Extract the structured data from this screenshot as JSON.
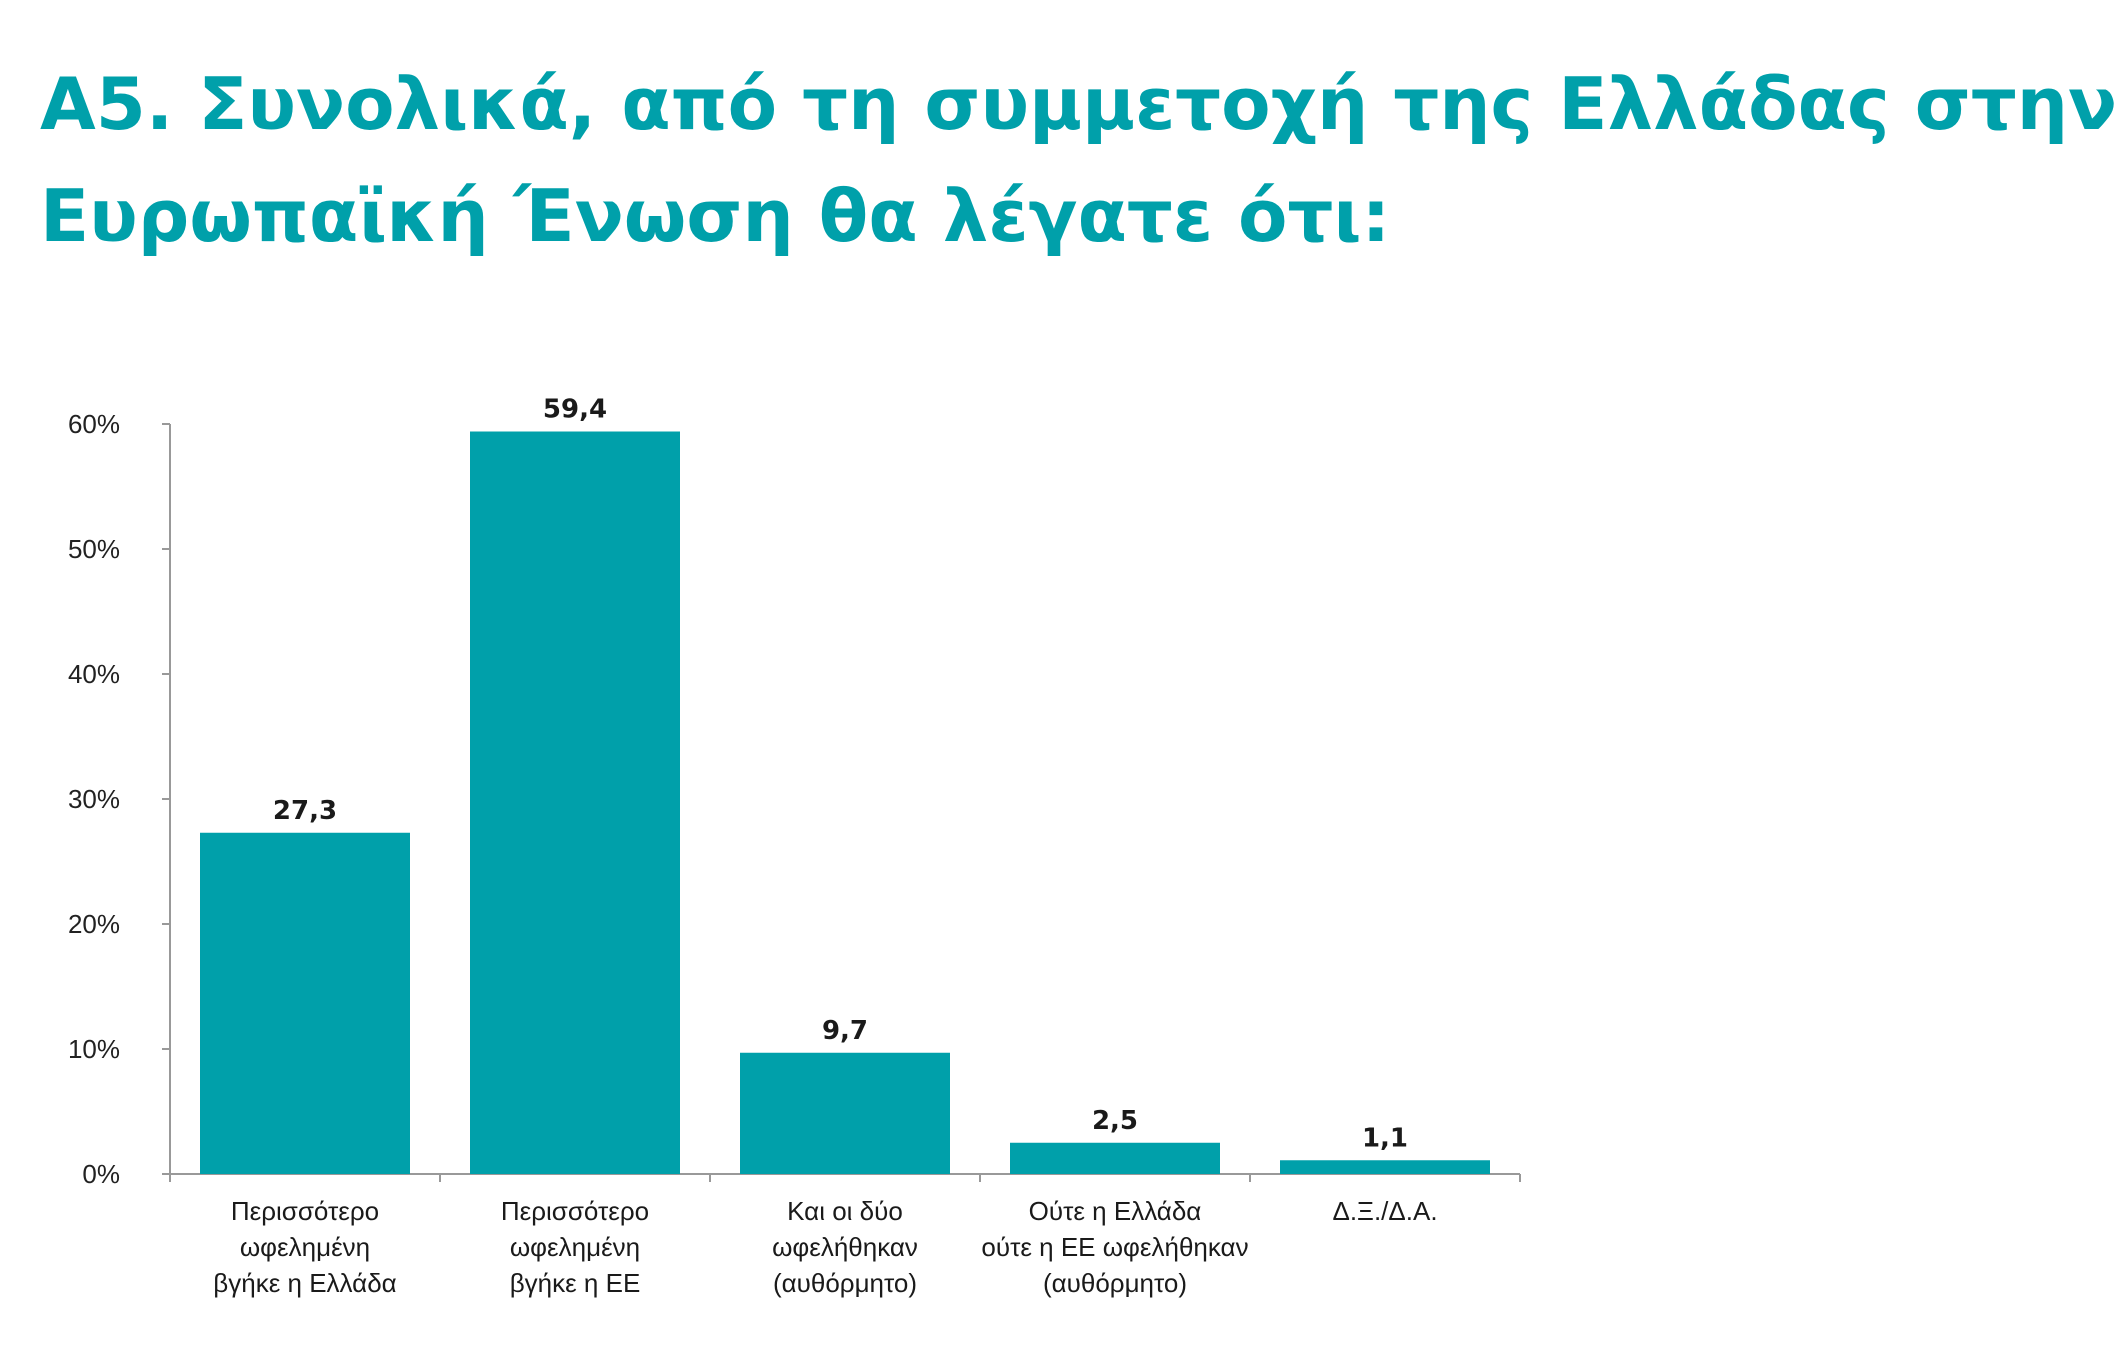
{
  "title_lines": [
    "Α5. Συνολικά, από τη συμμετοχή της Ελλάδας στην",
    "Ευρωπαϊκή Ένωση θα λέγατε ότι:"
  ],
  "colors": {
    "accent": "#00a0aa",
    "bar": "#00a0aa",
    "axis": "#999999",
    "text": "#1a1a1a"
  },
  "chart_data": {
    "type": "bar",
    "categories": [
      [
        "Περισσότερο",
        "ωφελημένη",
        "βγήκε η Ελλάδα"
      ],
      [
        "Περισσότερο",
        "ωφελημένη",
        "βγήκε η ΕΕ"
      ],
      [
        "Και οι δύο",
        "ωφελήθηκαν",
        "(αυθόρμητο)"
      ],
      [
        "Ούτε η Ελλάδα",
        "ούτε η ΕΕ ωφελήθηκαν",
        "(αυθόρμητο)"
      ],
      [
        "Δ.Ξ./Δ.Α."
      ]
    ],
    "values": [
      27.3,
      59.4,
      9.7,
      2.5,
      1.1
    ],
    "value_labels": [
      "27,3",
      "59,4",
      "9,7",
      "2,5",
      "1,1"
    ],
    "yticks": [
      0,
      10,
      20,
      30,
      40,
      50,
      60
    ],
    "ytick_labels": [
      "0%",
      "10%",
      "20%",
      "30%",
      "40%",
      "50%",
      "60%"
    ],
    "ylim": [
      0,
      60
    ],
    "xlabel": "",
    "ylabel": "",
    "grid": false,
    "legend": "none"
  }
}
